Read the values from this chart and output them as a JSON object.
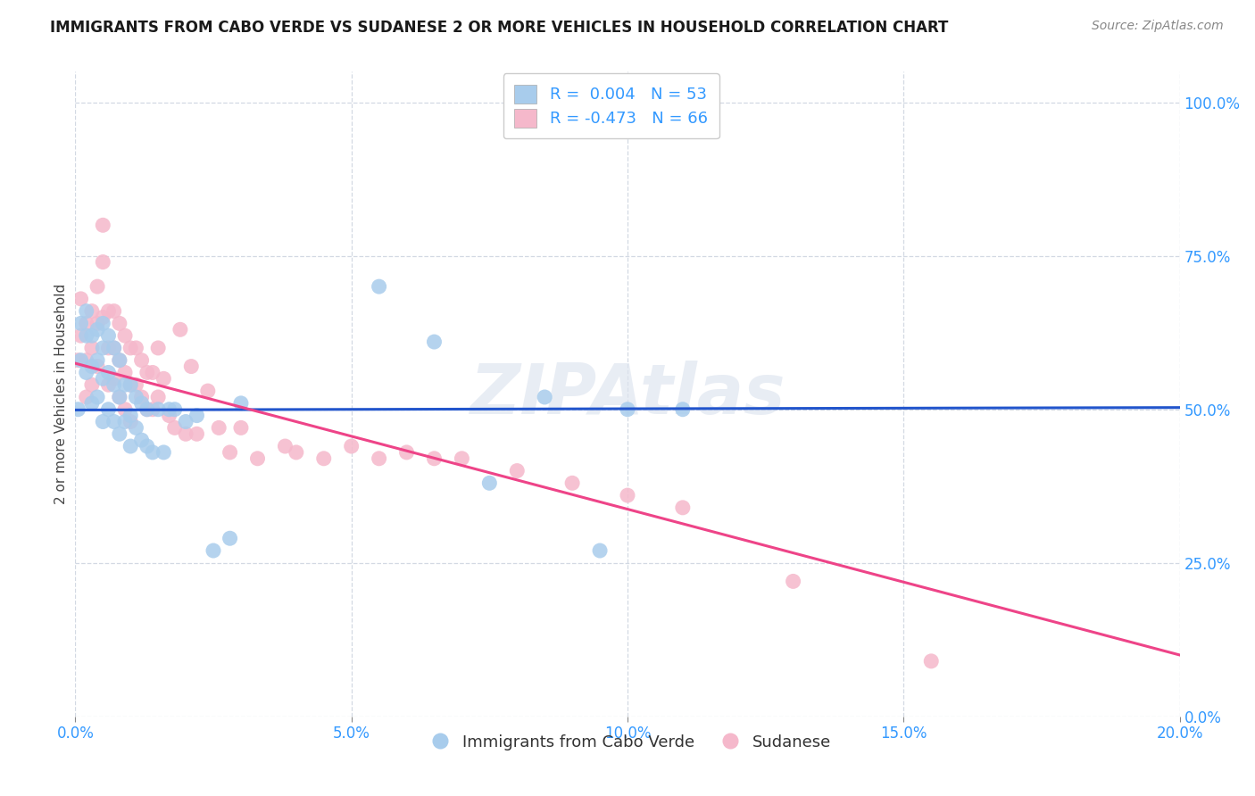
{
  "title": "IMMIGRANTS FROM CABO VERDE VS SUDANESE 2 OR MORE VEHICLES IN HOUSEHOLD CORRELATION CHART",
  "source": "Source: ZipAtlas.com",
  "xlabel_ticks": [
    "0.0%",
    "5.0%",
    "10.0%",
    "15.0%",
    "20.0%"
  ],
  "xlabel_tick_vals": [
    0.0,
    0.05,
    0.1,
    0.15,
    0.2
  ],
  "ylabel": "2 or more Vehicles in Household",
  "ylabel_tick_vals": [
    0.0,
    0.25,
    0.5,
    0.75,
    1.0
  ],
  "right_tick_labels": [
    "0.0%",
    "25.0%",
    "50.0%",
    "75.0%",
    "100.0%"
  ],
  "xlim": [
    0.0,
    0.2
  ],
  "ylim": [
    0.0,
    1.05
  ],
  "legend_label1": "R =  0.004   N = 53",
  "legend_label2": "R = -0.473   N = 66",
  "legend_bottom_label1": "Immigrants from Cabo Verde",
  "legend_bottom_label2": "Sudanese",
  "color_blue": "#a8ccec",
  "color_pink": "#f5b8cb",
  "line_blue": "#2255cc",
  "line_pink": "#ee4488",
  "watermark": "ZIPAtlas",
  "cabo_verde_x": [
    0.0005,
    0.001,
    0.001,
    0.002,
    0.002,
    0.002,
    0.003,
    0.003,
    0.003,
    0.004,
    0.004,
    0.004,
    0.005,
    0.005,
    0.005,
    0.005,
    0.006,
    0.006,
    0.006,
    0.007,
    0.007,
    0.007,
    0.008,
    0.008,
    0.008,
    0.009,
    0.009,
    0.01,
    0.01,
    0.01,
    0.011,
    0.011,
    0.012,
    0.012,
    0.013,
    0.013,
    0.014,
    0.015,
    0.016,
    0.017,
    0.018,
    0.02,
    0.022,
    0.025,
    0.028,
    0.03,
    0.055,
    0.065,
    0.075,
    0.085,
    0.095,
    0.1,
    0.11
  ],
  "cabo_verde_y": [
    0.5,
    0.64,
    0.58,
    0.66,
    0.62,
    0.56,
    0.62,
    0.57,
    0.51,
    0.63,
    0.58,
    0.52,
    0.64,
    0.6,
    0.55,
    0.48,
    0.62,
    0.56,
    0.5,
    0.6,
    0.54,
    0.48,
    0.58,
    0.52,
    0.46,
    0.54,
    0.48,
    0.54,
    0.49,
    0.44,
    0.52,
    0.47,
    0.51,
    0.45,
    0.5,
    0.44,
    0.43,
    0.5,
    0.43,
    0.5,
    0.5,
    0.48,
    0.49,
    0.27,
    0.29,
    0.51,
    0.7,
    0.61,
    0.38,
    0.52,
    0.27,
    0.5,
    0.5
  ],
  "sudanese_x": [
    0.0005,
    0.001,
    0.001,
    0.002,
    0.002,
    0.002,
    0.003,
    0.003,
    0.003,
    0.004,
    0.004,
    0.004,
    0.005,
    0.005,
    0.005,
    0.006,
    0.006,
    0.006,
    0.007,
    0.007,
    0.007,
    0.008,
    0.008,
    0.008,
    0.009,
    0.009,
    0.009,
    0.01,
    0.01,
    0.01,
    0.011,
    0.011,
    0.012,
    0.012,
    0.013,
    0.013,
    0.014,
    0.014,
    0.015,
    0.015,
    0.016,
    0.017,
    0.018,
    0.019,
    0.02,
    0.021,
    0.022,
    0.024,
    0.026,
    0.028,
    0.03,
    0.033,
    0.038,
    0.04,
    0.045,
    0.05,
    0.055,
    0.06,
    0.065,
    0.07,
    0.08,
    0.09,
    0.1,
    0.11,
    0.13,
    0.155
  ],
  "sudanese_y": [
    0.58,
    0.68,
    0.62,
    0.64,
    0.58,
    0.52,
    0.66,
    0.6,
    0.54,
    0.7,
    0.64,
    0.57,
    0.8,
    0.74,
    0.65,
    0.66,
    0.6,
    0.54,
    0.66,
    0.6,
    0.55,
    0.64,
    0.58,
    0.52,
    0.62,
    0.56,
    0.5,
    0.6,
    0.54,
    0.48,
    0.6,
    0.54,
    0.58,
    0.52,
    0.56,
    0.5,
    0.56,
    0.5,
    0.6,
    0.52,
    0.55,
    0.49,
    0.47,
    0.63,
    0.46,
    0.57,
    0.46,
    0.53,
    0.47,
    0.43,
    0.47,
    0.42,
    0.44,
    0.43,
    0.42,
    0.44,
    0.42,
    0.43,
    0.42,
    0.42,
    0.4,
    0.38,
    0.36,
    0.34,
    0.22,
    0.09
  ],
  "cabo_trendline_x": [
    0.0,
    0.2
  ],
  "cabo_trendline_y": [
    0.499,
    0.503
  ],
  "sudanese_trendline_x": [
    0.0,
    0.2
  ],
  "sudanese_trendline_y": [
    0.575,
    0.1
  ]
}
